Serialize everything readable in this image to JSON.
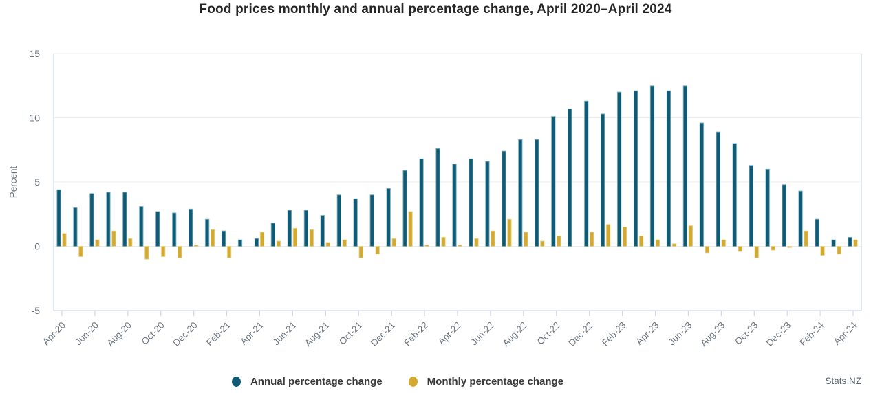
{
  "title": "Food prices monthly and annual percentage change, April 2020–April 2024",
  "source": "Stats NZ",
  "chart_data": {
    "type": "bar",
    "title": "Food prices monthly and annual percentage change, April 2020–April 2024",
    "xlabel": "",
    "ylabel": "Percent",
    "ylim": [
      -5,
      15
    ],
    "yticks": [
      15,
      10,
      5,
      0,
      -5
    ],
    "grid": "horizontal",
    "legend_position": "bottom-center",
    "grid_color": "#ececec",
    "axis_color": "#c9d9ee",
    "tick_label_color": "#6b7680",
    "categories": [
      "Apr-20",
      "May-20",
      "Jun-20",
      "Jul-20",
      "Aug-20",
      "Sep-20",
      "Oct-20",
      "Nov-20",
      "Dec-20",
      "Jan-21",
      "Feb-21",
      "Mar-21",
      "Apr-21",
      "May-21",
      "Jun-21",
      "Jul-21",
      "Aug-21",
      "Sep-21",
      "Oct-21",
      "Nov-21",
      "Dec-21",
      "Jan-22",
      "Feb-22",
      "Mar-22",
      "Apr-22",
      "May-22",
      "Jun-22",
      "Jul-22",
      "Aug-22",
      "Sep-22",
      "Oct-22",
      "Nov-22",
      "Dec-22",
      "Jan-23",
      "Feb-23",
      "Mar-23",
      "Apr-23",
      "May-23",
      "Jun-23",
      "Jul-23",
      "Aug-23",
      "Sep-23",
      "Oct-23",
      "Nov-23",
      "Dec-23",
      "Jan-24",
      "Feb-24",
      "Mar-24",
      "Apr-24"
    ],
    "x_tick_labels": [
      "Apr-20",
      "Jun-20",
      "Aug-20",
      "Oct-20",
      "Dec-20",
      "Feb-21",
      "Apr-21",
      "Jun-21",
      "Aug-21",
      "Oct-21",
      "Dec-21",
      "Feb-22",
      "Apr-22",
      "Jun-22",
      "Aug-22",
      "Oct-22",
      "Dec-22",
      "Feb-23",
      "Apr-23",
      "Jun-23",
      "Aug-23",
      "Oct-23",
      "Dec-23",
      "Feb-24",
      "Apr-24"
    ],
    "series": [
      {
        "name": "Annual percentage change",
        "color": "#105b74",
        "edge_color": "#79aec2",
        "values": [
          4.4,
          3.0,
          4.1,
          4.2,
          4.2,
          3.1,
          2.7,
          2.6,
          2.9,
          2.1,
          1.2,
          0.5,
          0.6,
          1.8,
          2.8,
          2.8,
          2.4,
          4.0,
          3.7,
          4.0,
          4.5,
          5.9,
          6.8,
          7.6,
          6.4,
          6.8,
          6.6,
          7.4,
          8.3,
          8.3,
          10.1,
          10.7,
          11.3,
          10.3,
          12.0,
          12.1,
          12.5,
          12.1,
          12.5,
          9.6,
          8.9,
          8.0,
          6.3,
          6.0,
          4.8,
          4.3,
          2.1,
          0.5,
          0.7
        ]
      },
      {
        "name": "Monthly percentage change",
        "color": "#d3a930",
        "edge_color": "#e8d48b",
        "values": [
          1.0,
          -0.8,
          0.5,
          1.2,
          0.6,
          -1.0,
          -0.8,
          -0.9,
          0.1,
          1.3,
          -0.9,
          0.0,
          1.1,
          0.4,
          1.4,
          1.3,
          0.3,
          0.5,
          -0.9,
          -0.6,
          0.6,
          2.7,
          0.1,
          0.7,
          0.1,
          0.6,
          1.2,
          2.1,
          1.1,
          0.4,
          0.8,
          0.0,
          1.1,
          1.7,
          1.5,
          0.8,
          0.5,
          0.2,
          1.6,
          -0.5,
          0.5,
          -0.4,
          -0.9,
          -0.3,
          -0.1,
          1.2,
          -0.7,
          -0.6,
          0.5
        ]
      }
    ]
  }
}
